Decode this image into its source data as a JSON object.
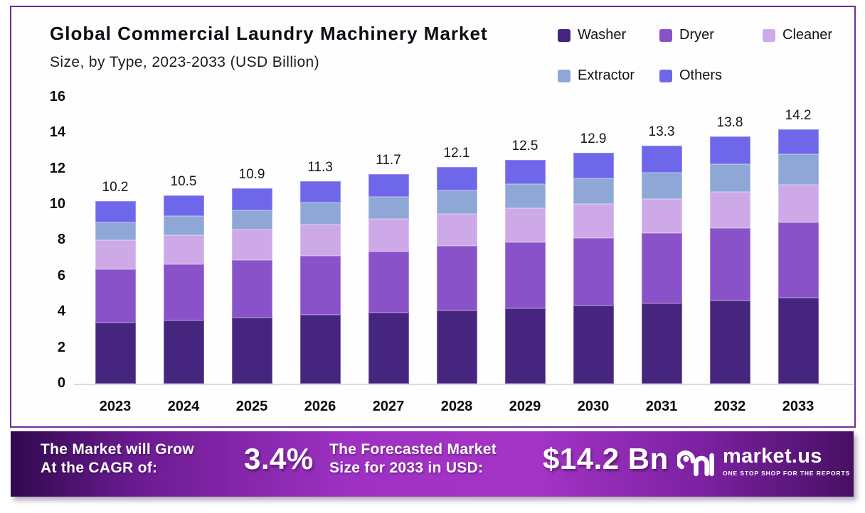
{
  "chart_data": {
    "type": "bar",
    "stacked": true,
    "title": "Global Commercial Laundry Machinery Market",
    "subtitle": "Size, by Type, 2023-2033 (USD Billion)",
    "categories": [
      "2023",
      "2024",
      "2025",
      "2026",
      "2027",
      "2028",
      "2029",
      "2030",
      "2031",
      "2032",
      "2033"
    ],
    "series": [
      {
        "name": "Washer",
        "color": "#46257f",
        "values": [
          3.4,
          3.55,
          3.7,
          3.85,
          3.95,
          4.1,
          4.2,
          4.35,
          4.5,
          4.65,
          4.8
        ]
      },
      {
        "name": "Dryer",
        "color": "#8a52c9",
        "values": [
          3.0,
          3.1,
          3.2,
          3.3,
          3.45,
          3.6,
          3.7,
          3.8,
          3.9,
          4.05,
          4.2
        ]
      },
      {
        "name": "Cleaner",
        "color": "#cda9e8",
        "values": [
          1.6,
          1.65,
          1.7,
          1.75,
          1.8,
          1.8,
          1.9,
          1.9,
          1.9,
          2.0,
          2.1
        ]
      },
      {
        "name": "Extractor",
        "color": "#8fa7d6",
        "values": [
          1.0,
          1.05,
          1.1,
          1.2,
          1.25,
          1.3,
          1.35,
          1.4,
          1.5,
          1.55,
          1.7
        ]
      },
      {
        "name": "Others",
        "color": "#6f67ea",
        "values": [
          1.2,
          1.15,
          1.2,
          1.2,
          1.25,
          1.3,
          1.35,
          1.45,
          1.5,
          1.55,
          1.4
        ]
      }
    ],
    "totals": [
      10.2,
      10.5,
      10.9,
      11.3,
      11.7,
      12.1,
      12.5,
      12.9,
      13.3,
      13.8,
      14.2
    ],
    "y_ticks": [
      0,
      2,
      4,
      6,
      8,
      10,
      12,
      14,
      16
    ],
    "ylim": [
      0,
      16
    ],
    "grid": false,
    "legend": {
      "position": "top-right",
      "rows": [
        [
          "Washer",
          "Dryer",
          "Cleaner"
        ],
        [
          "Extractor",
          "Others"
        ]
      ]
    }
  },
  "banner": {
    "cagr_label_line1": "The Market will Grow",
    "cagr_label_line2": "At the CAGR of:",
    "cagr_value": "3.4%",
    "forecast_label_line1": "The Forecasted Market",
    "forecast_label_line2": "Size for 2033 in USD:",
    "forecast_value": "$14.2 Bn",
    "brand_name": "market.us",
    "brand_tagline": "ONE STOP SHOP FOR THE REPORTS"
  }
}
